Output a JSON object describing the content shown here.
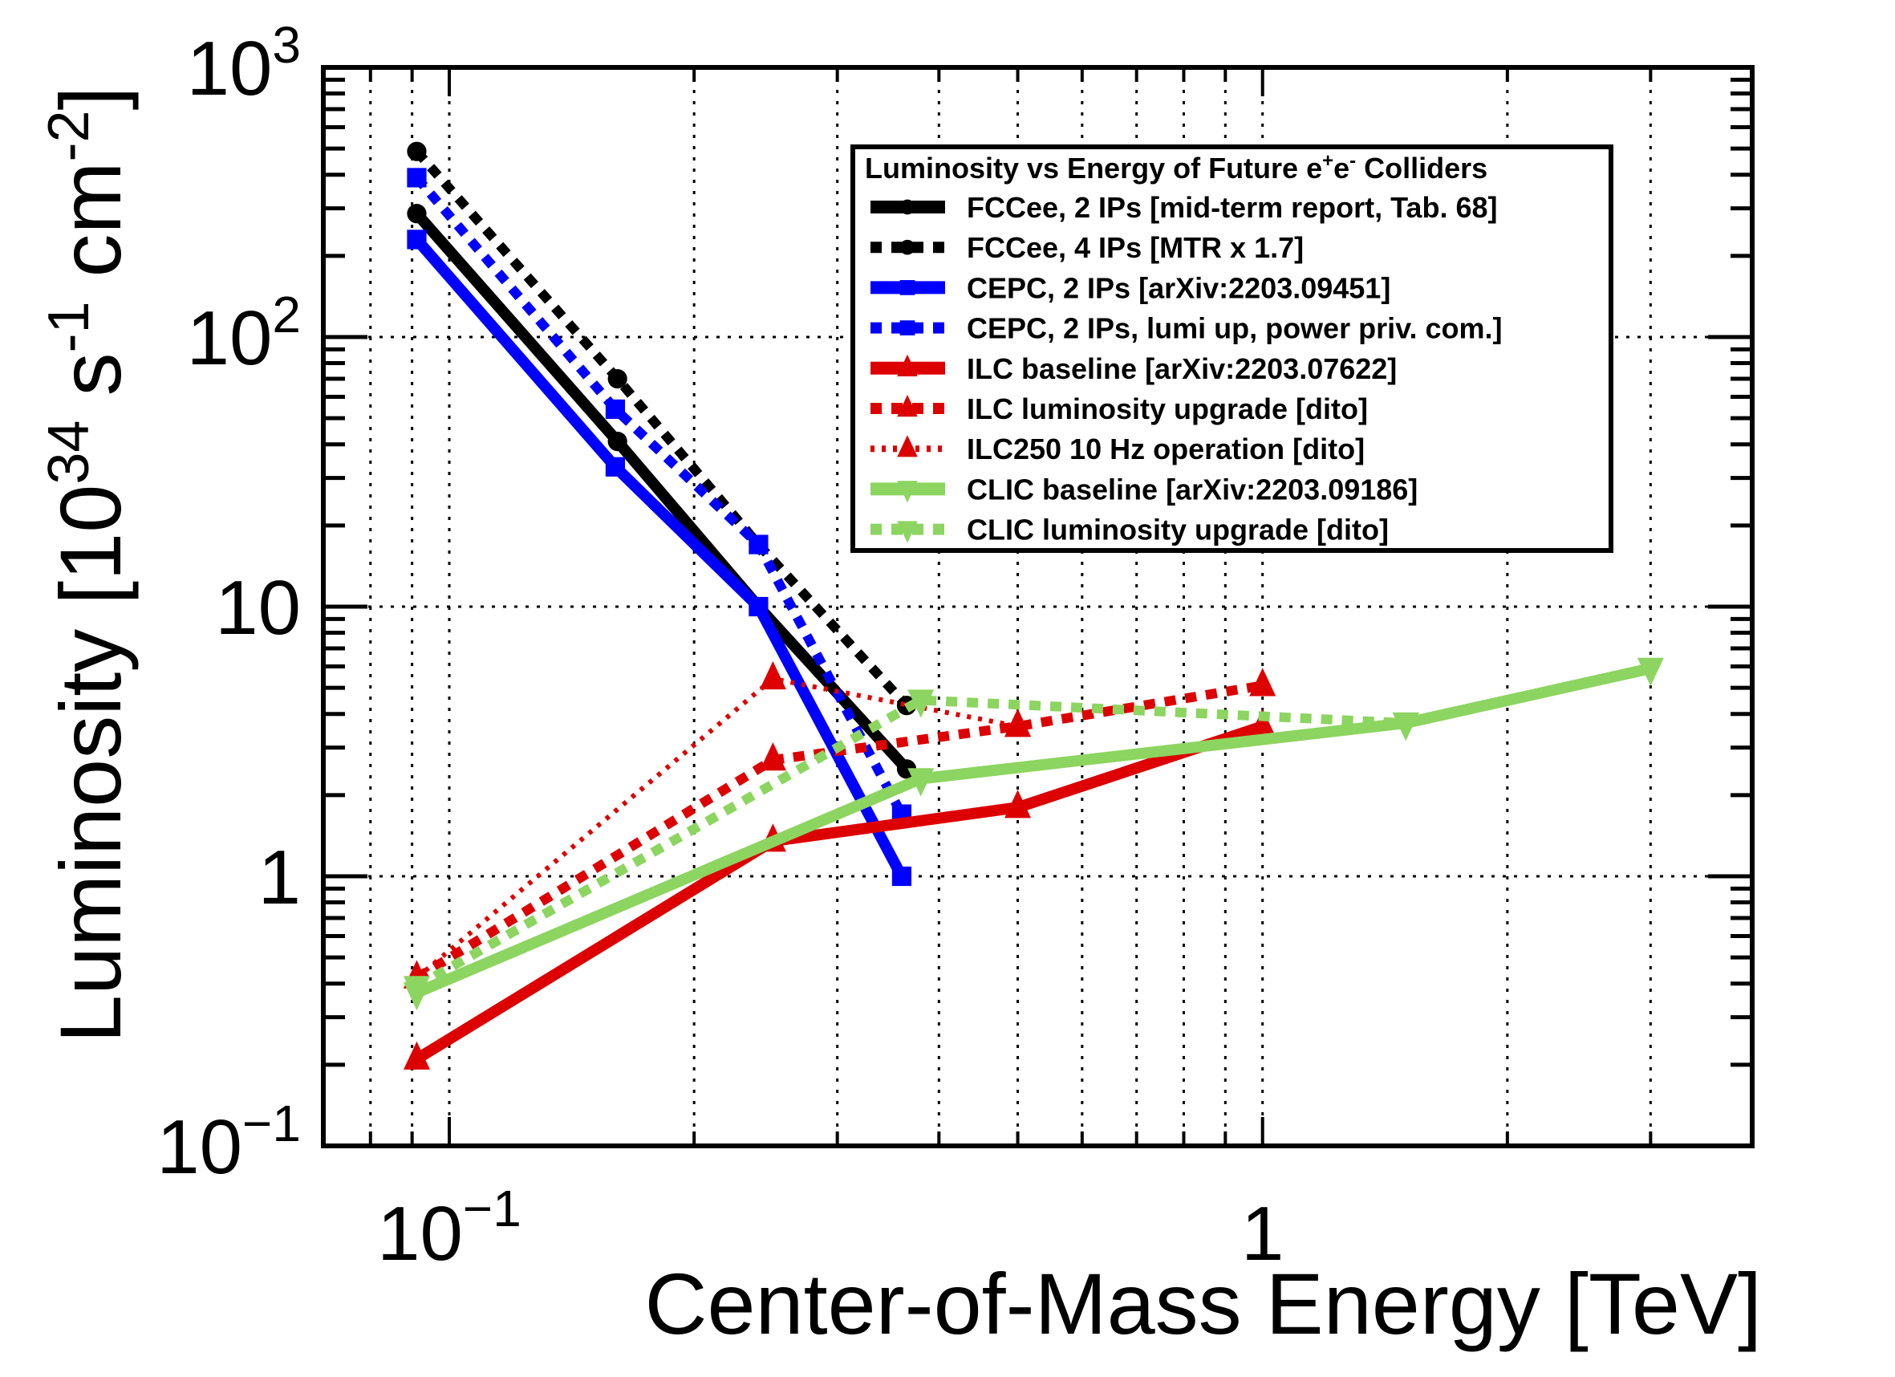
{
  "chart_data": {
    "type": "line",
    "title": "",
    "xlabel": "Center-of-Mass Energy [TeV]",
    "ylabel": "Luminosity [10^34 s^-1 cm^-2]",
    "xscale": "log",
    "yscale": "log",
    "xlim": [
      0.07,
      4.0
    ],
    "ylim": [
      0.1,
      1000
    ],
    "grid": true,
    "x_ticks": [
      {
        "value": 0.1,
        "label": "10",
        "sup": "−1"
      },
      {
        "value": 1,
        "label": "1",
        "sup": ""
      }
    ],
    "y_ticks": [
      {
        "value": 0.1,
        "label": "10",
        "sup": "−1"
      },
      {
        "value": 1,
        "label": "1",
        "sup": ""
      },
      {
        "value": 10,
        "label": "10",
        "sup": ""
      },
      {
        "value": 100,
        "label": "10",
        "sup": "2"
      },
      {
        "value": 1000,
        "label": "10",
        "sup": "3"
      }
    ],
    "ylabel_parts": {
      "main": "Luminosity [10",
      "exp1": "34",
      "mid1": " s",
      "exp2": "-1",
      "mid2": " cm",
      "exp3": "-2",
      "end": "]"
    },
    "legend": {
      "title": "Luminosity vs Energy of Future e",
      "title_sup1": "+",
      "title_mid": "e",
      "title_sup2": "-",
      "title_end": " Colliders",
      "placement": "top-right"
    },
    "series": [
      {
        "name": "FCCee, 2 IPs [mid-term report, Tab. 68]",
        "color": "#000000",
        "style": "solid",
        "marker": "circle",
        "x": [
          0.0912,
          0.161,
          0.24,
          0.365
        ],
        "y": [
          287,
          41,
          10,
          2.5
        ]
      },
      {
        "name": "FCCee, 4 IPs [MTR x 1.7]",
        "color": "#000000",
        "style": "dashed",
        "marker": "circle",
        "x": [
          0.0912,
          0.161,
          0.24,
          0.365
        ],
        "y": [
          488,
          70,
          17,
          4.3
        ]
      },
      {
        "name": "CEPC, 2 IPs [arXiv:2203.09451]",
        "color": "#0000ff",
        "style": "solid",
        "marker": "square",
        "x": [
          0.0912,
          0.16,
          0.24,
          0.36
        ],
        "y": [
          230,
          33,
          10,
          1.0
        ]
      },
      {
        "name": "CEPC, 2 IPs, lumi up, power priv. com.]",
        "color": "#0000ff",
        "style": "dashed",
        "marker": "square",
        "x": [
          0.0912,
          0.16,
          0.24,
          0.36
        ],
        "y": [
          390,
          54,
          17,
          1.7
        ]
      },
      {
        "name": "ILC baseline [arXiv:2203.07622]",
        "color": "#dd0000",
        "style": "solid",
        "marker": "triangle-up",
        "x": [
          0.0912,
          0.25,
          0.5,
          1.0
        ],
        "y": [
          0.21,
          1.35,
          1.8,
          3.6
        ]
      },
      {
        "name": "ILC luminosity upgrade [dito]",
        "color": "#dd0000",
        "style": "dashed",
        "marker": "triangle-up",
        "x": [
          0.0912,
          0.25,
          0.5,
          1.0
        ],
        "y": [
          0.42,
          2.7,
          3.6,
          5.1
        ]
      },
      {
        "name": "ILC250 10 Hz operation [dito]",
        "color": "#dd0000",
        "style": "dotted",
        "marker": "triangle-up",
        "x": [
          0.0912,
          0.25,
          0.5
        ],
        "y": [
          0.42,
          5.4,
          3.6
        ]
      },
      {
        "name": "CLIC baseline [arXiv:2203.09186]",
        "color": "#8cd560",
        "style": "solid",
        "marker": "triangle-down",
        "x": [
          0.0912,
          0.38,
          1.5,
          3.0
        ],
        "y": [
          0.37,
          2.3,
          3.7,
          5.9
        ]
      },
      {
        "name": "CLIC luminosity upgrade [dito]",
        "color": "#8cd560",
        "style": "dashed",
        "marker": "triangle-down",
        "x": [
          0.0912,
          0.38,
          1.5
        ],
        "y": [
          0.39,
          4.5,
          3.7
        ]
      }
    ]
  }
}
